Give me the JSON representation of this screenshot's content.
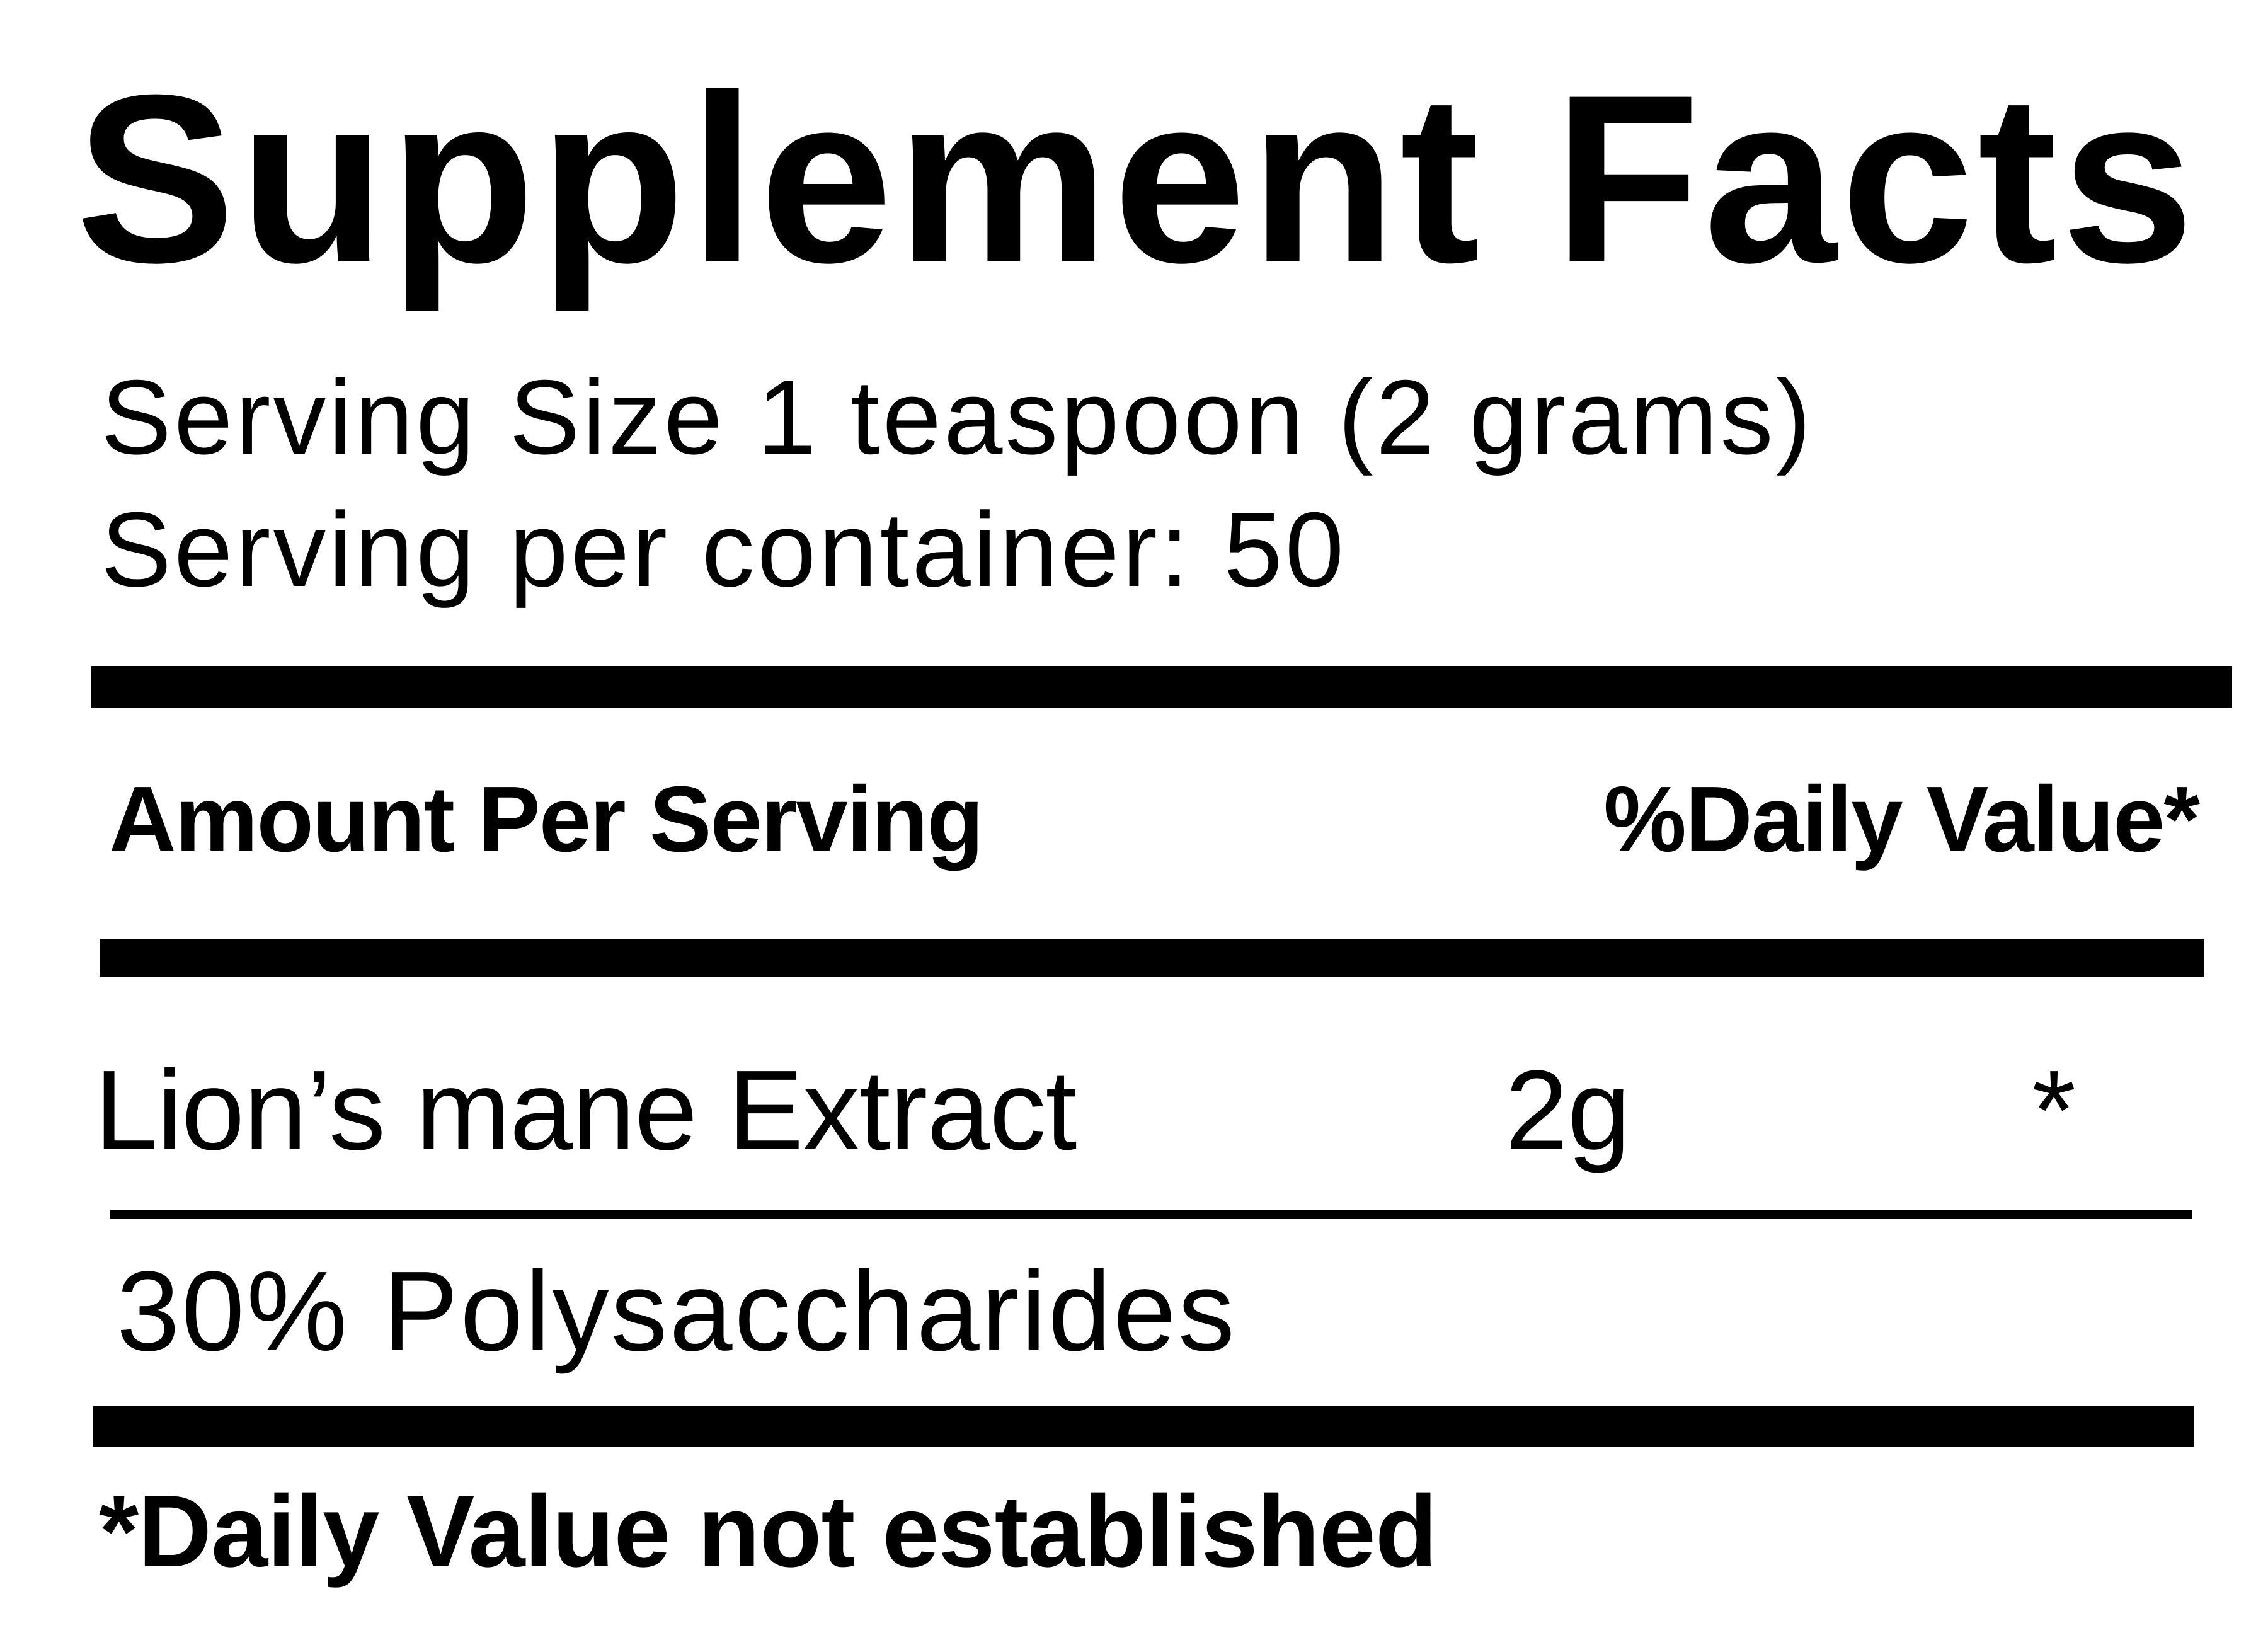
{
  "label": {
    "title": "Supplement Facts",
    "serving_size": "Serving Size 1 teaspoon (2 grams)",
    "servings_per_container": "Serving per container: 50",
    "header": {
      "amount_per_serving": "Amount Per Serving",
      "daily_value": "%Daily Value*"
    },
    "ingredients": [
      {
        "name": "Lion’s mane Extract",
        "amount": "2g",
        "daily_value": "*"
      },
      {
        "name": "30% Polysaccharides"
      }
    ],
    "footnote": "*Daily Value not established"
  }
}
